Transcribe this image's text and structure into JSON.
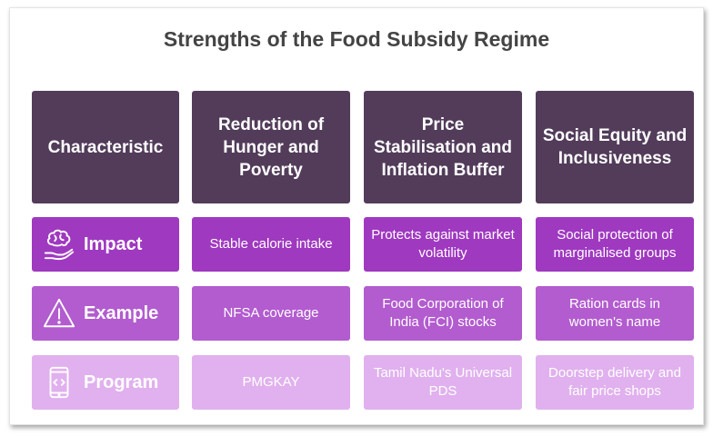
{
  "title": "Strengths of the Food Subsidy Regime",
  "headers": [
    "Characteristic",
    "Reduction of Hunger and Poverty",
    "Price Stabilisation and Inflation Buffer",
    "Social Equity and Inclusiveness"
  ],
  "rows": [
    {
      "label": "Impact",
      "icon": "brain-hand-icon",
      "cells": [
        "Stable calorie intake",
        "Protects against market volatility",
        "Social protection of marginalised groups"
      ]
    },
    {
      "label": "Example",
      "icon": "warning-triangle-icon",
      "cells": [
        "NFSA coverage",
        "Food Corporation of India (FCI) stocks",
        "Ration cards in women's name"
      ]
    },
    {
      "label": "Program",
      "icon": "mobile-code-icon",
      "cells": [
        "PMGKAY",
        "Tamil Nadu's Universal PDS",
        "Doorstep delivery and fair price shops"
      ]
    }
  ],
  "colors": {
    "header_bg": "#523c5a",
    "impact_bg": "#9f39c0",
    "example_bg": "#b25ccf",
    "program_bg": "#e0b1ee",
    "title_text": "#444444"
  }
}
